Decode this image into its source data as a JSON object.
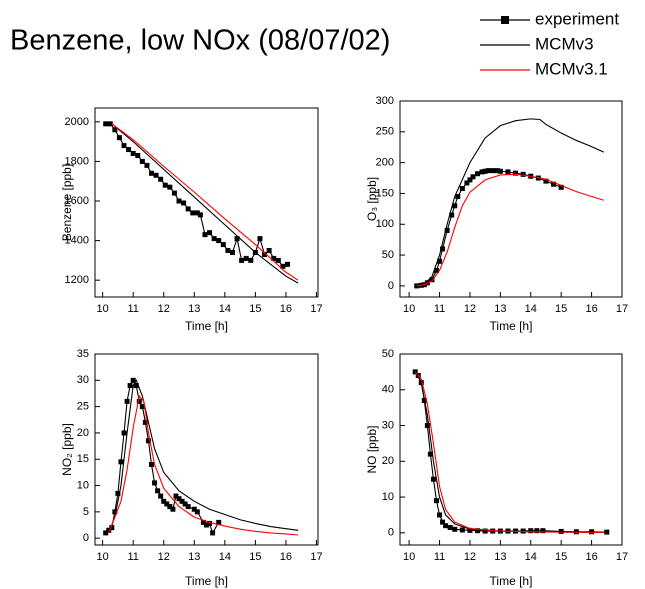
{
  "title": "Benzene, low NOx (08/07/02)",
  "chart_data": [
    {
      "type": "line",
      "x_label": "Time [h]",
      "y_label": "Benzene [ppb]",
      "xlim": [
        9.75,
        17.05
      ],
      "xticks": [
        10,
        11,
        12,
        13,
        14,
        15,
        16,
        17
      ],
      "ylim": [
        1115,
        2070
      ],
      "yticks": [
        1200,
        1400,
        1600,
        1800,
        2000
      ],
      "series": [
        {
          "name": "experiment",
          "color": "#000000",
          "marker": "square",
          "x": [
            10.1,
            10.25,
            10.4,
            10.55,
            10.7,
            10.85,
            11.0,
            11.15,
            11.3,
            11.45,
            11.6,
            11.75,
            11.9,
            12.05,
            12.2,
            12.35,
            12.5,
            12.65,
            12.8,
            12.95,
            13.1,
            13.2,
            13.35,
            13.5,
            13.65,
            13.8,
            13.95,
            14.1,
            14.25,
            14.4,
            14.55,
            14.7,
            14.85,
            15.0,
            15.15,
            15.3,
            15.45,
            15.6,
            15.75,
            15.9,
            16.05
          ],
          "values": [
            1990,
            1990,
            1960,
            1920,
            1880,
            1860,
            1840,
            1830,
            1800,
            1780,
            1740,
            1730,
            1710,
            1680,
            1670,
            1640,
            1600,
            1590,
            1560,
            1540,
            1540,
            1530,
            1430,
            1440,
            1410,
            1400,
            1380,
            1350,
            1340,
            1410,
            1300,
            1310,
            1300,
            1340,
            1410,
            1330,
            1350,
            1310,
            1300,
            1270,
            1280
          ]
        },
        {
          "name": "MCMv3",
          "color": "#000000",
          "x": [
            10.3,
            11,
            12,
            13,
            14,
            15,
            16,
            16.4
          ],
          "values": [
            1990,
            1900,
            1760,
            1620,
            1480,
            1340,
            1220,
            1185
          ]
        },
        {
          "name": "MCMv3.1",
          "color": "#ff0000",
          "x": [
            10.3,
            11,
            12,
            13,
            14,
            15,
            16,
            16.4
          ],
          "values": [
            1990,
            1910,
            1775,
            1645,
            1510,
            1380,
            1240,
            1200
          ]
        }
      ]
    },
    {
      "type": "line",
      "x_label": "Time [h]",
      "y_label": "O₃ [ppb]",
      "xlim": [
        9.7,
        17.0
      ],
      "xticks": [
        10,
        11,
        12,
        13,
        14,
        15,
        16,
        17
      ],
      "ylim": [
        -18,
        300
      ],
      "yticks": [
        0,
        50,
        100,
        150,
        200,
        250,
        300
      ],
      "series": [
        {
          "color": "#000000",
          "marker": "square",
          "x": [
            10.25,
            10.4,
            10.5,
            10.6,
            10.75,
            10.9,
            11.0,
            11.1,
            11.25,
            11.4,
            11.5,
            11.6,
            11.75,
            11.9,
            12.0,
            12.1,
            12.25,
            12.4,
            12.5,
            12.6,
            12.75,
            12.9,
            13.0,
            13.25,
            13.5,
            13.75,
            14.0,
            14.25,
            14.5,
            14.75,
            15.0
          ],
          "values": [
            0,
            1,
            2,
            5,
            10,
            25,
            40,
            60,
            90,
            115,
            130,
            145,
            158,
            167,
            172,
            177,
            182,
            185,
            186,
            187,
            187,
            187,
            186,
            185,
            183,
            181,
            178,
            175,
            170,
            165,
            160
          ]
        },
        {
          "color": "#000000",
          "x": [
            10.25,
            10.5,
            10.75,
            11,
            11.25,
            11.5,
            12,
            12.5,
            13,
            13.5,
            14,
            14.3,
            14.5,
            15,
            15.5,
            16,
            16.4
          ],
          "values": [
            0,
            3,
            15,
            50,
            100,
            145,
            200,
            240,
            260,
            268,
            271,
            270,
            262,
            248,
            236,
            226,
            217
          ]
        },
        {
          "color": "#ff0000",
          "x": [
            10.25,
            10.5,
            10.75,
            11,
            11.25,
            11.5,
            11.75,
            12,
            12.5,
            13,
            13.5,
            14,
            14.5,
            15,
            15.5,
            16,
            16.4
          ],
          "values": [
            0,
            2,
            8,
            25,
            55,
            95,
            130,
            152,
            172,
            180,
            181,
            178,
            173,
            163,
            153,
            145,
            139
          ]
        }
      ]
    },
    {
      "type": "line",
      "x_label": "Time [h]",
      "y_label": "NO₂ [ppb]",
      "xlim": [
        9.75,
        17.05
      ],
      "xticks": [
        10,
        11,
        12,
        13,
        14,
        15,
        16,
        17
      ],
      "ylim": [
        -1.3,
        35
      ],
      "yticks": [
        0,
        5,
        10,
        15,
        20,
        25,
        30,
        35
      ],
      "series": [
        {
          "color": "#000000",
          "marker": "square",
          "x": [
            10.1,
            10.2,
            10.3,
            10.4,
            10.5,
            10.6,
            10.7,
            10.8,
            10.9,
            11.0,
            11.1,
            11.2,
            11.3,
            11.4,
            11.5,
            11.6,
            11.7,
            11.8,
            11.9,
            12.0,
            12.1,
            12.2,
            12.3,
            12.4,
            12.5,
            12.6,
            12.7,
            12.8,
            13.0,
            13.1,
            13.3,
            13.4,
            13.5,
            13.6,
            13.8
          ],
          "values": [
            1,
            1.5,
            2,
            5,
            8.5,
            14.5,
            20,
            26,
            29,
            30,
            29,
            26,
            25,
            22,
            18.5,
            14,
            10.5,
            9,
            8,
            7,
            6.5,
            6,
            5.5,
            8,
            7.5,
            7,
            6.5,
            6,
            5.5,
            5,
            3,
            2.5,
            2.8,
            1,
            3
          ]
        },
        {
          "color": "#000000",
          "x": [
            10.2,
            10.4,
            10.6,
            10.8,
            11.0,
            11.1,
            11.3,
            11.5,
            11.7,
            12,
            12.5,
            13,
            13.5,
            14,
            14.5,
            15,
            15.5,
            16,
            16.4
          ],
          "values": [
            1,
            4,
            10,
            20,
            29,
            30,
            27,
            22,
            17,
            12.5,
            9,
            7,
            5.5,
            4.5,
            3.5,
            2.8,
            2.2,
            1.8,
            1.5
          ]
        },
        {
          "color": "#ff0000",
          "x": [
            10.2,
            10.4,
            10.6,
            10.8,
            11.0,
            11.2,
            11.35,
            11.5,
            11.7,
            12,
            12.5,
            13,
            13.5,
            14,
            14.5,
            15,
            15.5,
            16,
            16.4
          ],
          "values": [
            1,
            4,
            7,
            13,
            21,
            27,
            26,
            20,
            14,
            9.5,
            6,
            4,
            3,
            2.3,
            1.7,
            1.3,
            1,
            0.8,
            0.6
          ]
        }
      ]
    },
    {
      "type": "line",
      "x_label": "Time [h]",
      "y_label": "NO [ppb]",
      "xlim": [
        9.7,
        17.0
      ],
      "xticks": [
        10,
        11,
        12,
        13,
        14,
        15,
        16,
        17
      ],
      "ylim": [
        -3.4,
        50
      ],
      "yticks": [
        0,
        10,
        20,
        30,
        40,
        50
      ],
      "series": [
        {
          "color": "#000000",
          "marker": "square",
          "x": [
            10.2,
            10.3,
            10.4,
            10.5,
            10.6,
            10.7,
            10.8,
            10.9,
            11.0,
            11.1,
            11.2,
            11.35,
            11.5,
            11.75,
            12.0,
            12.25,
            12.5,
            12.75,
            13.0,
            13.25,
            13.5,
            13.75,
            14.0,
            14.2,
            14.4,
            15.0,
            15.5,
            16.0,
            16.5
          ],
          "values": [
            45,
            44,
            42,
            37,
            30,
            22,
            15,
            9,
            5,
            3,
            2,
            1.5,
            1,
            0.8,
            0.7,
            0.6,
            0.5,
            0.5,
            0.5,
            0.5,
            0.5,
            0.5,
            0.6,
            0.6,
            0.6,
            0.4,
            0.3,
            0.3,
            0.2
          ]
        },
        {
          "color": "#000000",
          "x": [
            10.2,
            10.4,
            10.6,
            10.8,
            11,
            11.2,
            11.5,
            12,
            13,
            14,
            15,
            16.4
          ],
          "values": [
            45,
            42,
            33,
            20,
            10,
            5,
            2.5,
            1,
            0.5,
            0.3,
            0.2,
            0.1
          ]
        },
        {
          "color": "#ff0000",
          "x": [
            10.2,
            10.4,
            10.6,
            10.8,
            11,
            11.2,
            11.5,
            12,
            13,
            14,
            15,
            16.4
          ],
          "values": [
            45,
            43,
            36,
            25,
            13,
            6.5,
            3,
            1.2,
            0.5,
            0.3,
            0.2,
            0.1
          ]
        }
      ]
    }
  ]
}
